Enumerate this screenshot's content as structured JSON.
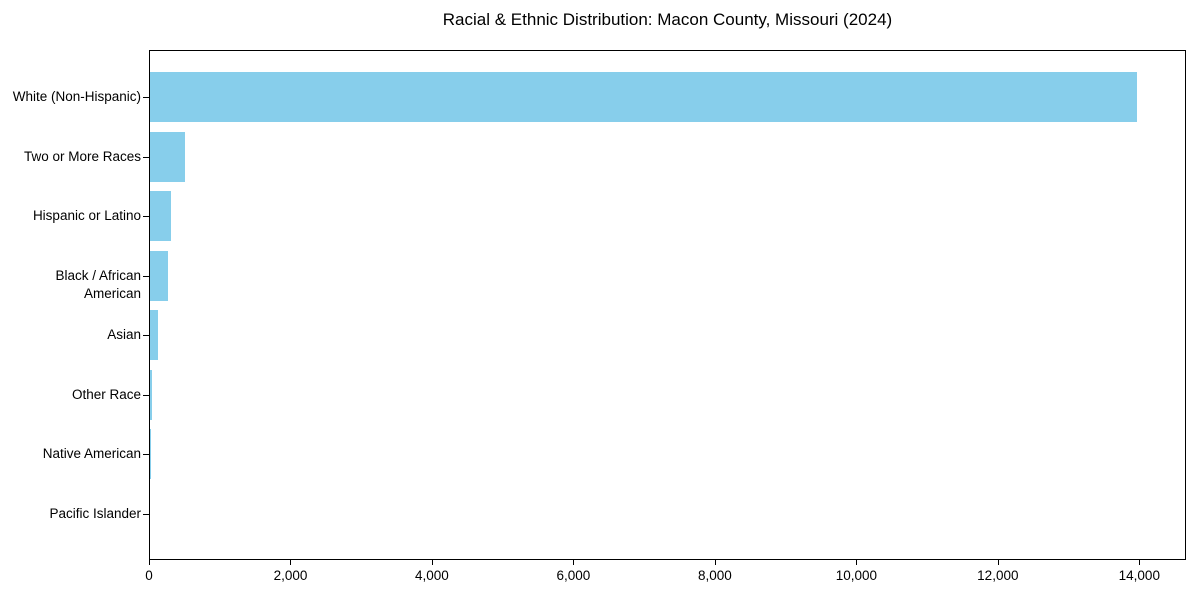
{
  "figure": {
    "background": "#ffffff"
  },
  "chart_data": {
    "type": "bar",
    "orientation": "horizontal",
    "title": "Racial & Ethnic Distribution: Macon County, Missouri (2024)",
    "categories": [
      "White (Non-Hispanic)",
      "Two or More Races",
      "Hispanic or Latino",
      "Black / African American",
      "Asian",
      "Other Race",
      "Native American",
      "Pacific Islander"
    ],
    "values": [
      13960,
      500,
      300,
      260,
      110,
      30,
      15,
      5
    ],
    "xlabel": "",
    "ylabel": "",
    "xlim": [
      0,
      14660
    ],
    "x_ticks": [
      0,
      2000,
      4000,
      6000,
      8000,
      10000,
      12000,
      14000
    ],
    "x_tick_labels": [
      "0",
      "2,000",
      "4,000",
      "6,000",
      "8,000",
      "10,000",
      "12,000",
      "14,000"
    ],
    "bar_color": "#87CEEB",
    "axis_color": "#000000",
    "text_color": "#000000",
    "grid": false,
    "legend": null
  }
}
